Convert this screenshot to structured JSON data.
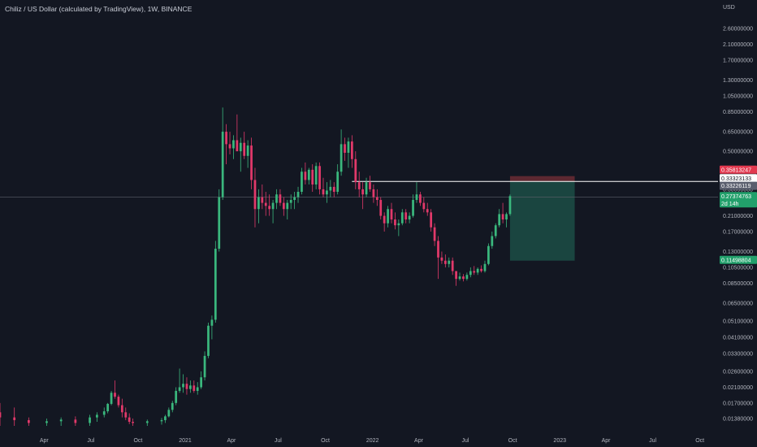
{
  "header": {
    "title": "Chiliz / US Dollar (calculated by TradingView), 1W, BINANCE",
    "unit": "USD"
  },
  "colors": {
    "background": "#131722",
    "up": "#26a69a",
    "down": "#ef5350",
    "up_bright": "#3ab77d",
    "down_bright": "#e2396a",
    "text": "#b2b5be",
    "line_white": "#ffffff",
    "target_zone": "#1c4a44",
    "stop_zone": "#6b2b34"
  },
  "chart_data": {
    "type": "candlestick",
    "symbol": "CHZUSD",
    "interval": "1W",
    "y_scale": "log",
    "ylim": [
      0.0125,
      3.0
    ],
    "y_ticks": [
      "2.60000000",
      "2.10000000",
      "1.70000000",
      "1.30000000",
      "1.05000000",
      "0.85000000",
      "0.65000000",
      "0.50000000",
      "0.40000000",
      "0.30000000",
      "0.21000000",
      "0.17000000",
      "0.13000000",
      "0.10500000",
      "0.08500000",
      "0.06500000",
      "0.05100000",
      "0.04100000",
      "0.03300000",
      "0.02600000",
      "0.02100000",
      "0.01700000",
      "0.01380000"
    ],
    "x_ticks": [
      "Apr",
      "Jul",
      "Oct",
      "2021",
      "Apr",
      "Jul",
      "Oct",
      "2022",
      "Apr",
      "Jul",
      "Oct",
      "2023",
      "Apr",
      "Jul",
      "Oct"
    ],
    "x_range": [
      "2020-01-06",
      "2023-10-30"
    ],
    "price_labels": [
      {
        "text": "0.35813247",
        "kind": "stop"
      },
      {
        "text": "0.33323133",
        "kind": "white"
      },
      {
        "text": "0.33226119",
        "kind": "gray"
      },
      {
        "text": "0.27374763",
        "sub": "2d 14h",
        "kind": "last"
      },
      {
        "text": "0.11498804",
        "kind": "target"
      }
    ],
    "levels": {
      "horizontal_line": 0.3332,
      "horizontal_line_start": "2021-11-22",
      "current_price": 0.2737,
      "crosshair": 0.27
    },
    "position": {
      "start": "2022-09-26",
      "end": "2023-01-30",
      "entry": 0.3322,
      "stop": 0.3581,
      "target": 0.115
    },
    "candles": [
      {
        "t": "2020-01-06",
        "o": 0.015,
        "h": 0.017,
        "l": 0.0125,
        "c": 0.014
      },
      {
        "t": "2020-02-03",
        "o": 0.014,
        "h": 0.016,
        "l": 0.0125,
        "c": 0.0135
      },
      {
        "t": "2020-03-02",
        "o": 0.0135,
        "h": 0.014,
        "l": 0.0125,
        "c": 0.013
      },
      {
        "t": "2020-04-06",
        "o": 0.013,
        "h": 0.0138,
        "l": 0.0125,
        "c": 0.0133
      },
      {
        "t": "2020-05-04",
        "o": 0.0133,
        "h": 0.014,
        "l": 0.0125,
        "c": 0.0136
      },
      {
        "t": "2020-06-01",
        "o": 0.0136,
        "h": 0.0142,
        "l": 0.0125,
        "c": 0.013
      },
      {
        "t": "2020-06-29",
        "o": 0.013,
        "h": 0.0145,
        "l": 0.0125,
        "c": 0.014
      },
      {
        "t": "2020-07-13",
        "o": 0.014,
        "h": 0.015,
        "l": 0.0132,
        "c": 0.0145
      },
      {
        "t": "2020-07-27",
        "o": 0.0145,
        "h": 0.016,
        "l": 0.014,
        "c": 0.0152
      },
      {
        "t": "2020-08-03",
        "o": 0.0152,
        "h": 0.017,
        "l": 0.0148,
        "c": 0.0168
      },
      {
        "t": "2020-08-10",
        "o": 0.0168,
        "h": 0.02,
        "l": 0.0165,
        "c": 0.0195
      },
      {
        "t": "2020-08-17",
        "o": 0.0195,
        "h": 0.023,
        "l": 0.018,
        "c": 0.0185
      },
      {
        "t": "2020-08-24",
        "o": 0.0185,
        "h": 0.019,
        "l": 0.016,
        "c": 0.0165
      },
      {
        "t": "2020-08-31",
        "o": 0.0165,
        "h": 0.018,
        "l": 0.014,
        "c": 0.015
      },
      {
        "t": "2020-09-07",
        "o": 0.015,
        "h": 0.016,
        "l": 0.0135,
        "c": 0.014
      },
      {
        "t": "2020-09-14",
        "o": 0.014,
        "h": 0.0148,
        "l": 0.0128,
        "c": 0.0132
      },
      {
        "t": "2020-09-21",
        "o": 0.0132,
        "h": 0.0138,
        "l": 0.0125,
        "c": 0.013
      },
      {
        "t": "2020-10-19",
        "o": 0.013,
        "h": 0.0136,
        "l": 0.0125,
        "c": 0.0133
      },
      {
        "t": "2020-11-16",
        "o": 0.0133,
        "h": 0.0139,
        "l": 0.0127,
        "c": 0.0135
      },
      {
        "t": "2020-11-23",
        "o": 0.0135,
        "h": 0.0145,
        "l": 0.013,
        "c": 0.0142
      },
      {
        "t": "2020-11-30",
        "o": 0.0142,
        "h": 0.016,
        "l": 0.014,
        "c": 0.0155
      },
      {
        "t": "2020-12-07",
        "o": 0.0155,
        "h": 0.0175,
        "l": 0.015,
        "c": 0.017
      },
      {
        "t": "2020-12-14",
        "o": 0.017,
        "h": 0.021,
        "l": 0.0165,
        "c": 0.02
      },
      {
        "t": "2020-12-21",
        "o": 0.02,
        "h": 0.027,
        "l": 0.0195,
        "c": 0.021
      },
      {
        "t": "2020-12-28",
        "o": 0.021,
        "h": 0.025,
        "l": 0.0195,
        "c": 0.022
      },
      {
        "t": "2021-01-04",
        "o": 0.022,
        "h": 0.024,
        "l": 0.019,
        "c": 0.0205
      },
      {
        "t": "2021-01-11",
        "o": 0.0205,
        "h": 0.023,
        "l": 0.0195,
        "c": 0.0215
      },
      {
        "t": "2021-01-18",
        "o": 0.0215,
        "h": 0.023,
        "l": 0.0195,
        "c": 0.02
      },
      {
        "t": "2021-01-25",
        "o": 0.02,
        "h": 0.0225,
        "l": 0.019,
        "c": 0.021
      },
      {
        "t": "2021-02-01",
        "o": 0.021,
        "h": 0.026,
        "l": 0.0205,
        "c": 0.024
      },
      {
        "t": "2021-02-08",
        "o": 0.024,
        "h": 0.034,
        "l": 0.023,
        "c": 0.032
      },
      {
        "t": "2021-02-15",
        "o": 0.032,
        "h": 0.05,
        "l": 0.031,
        "c": 0.048
      },
      {
        "t": "2021-02-22",
        "o": 0.048,
        "h": 0.055,
        "l": 0.04,
        "c": 0.052
      },
      {
        "t": "2021-03-01",
        "o": 0.052,
        "h": 0.15,
        "l": 0.05,
        "c": 0.135
      },
      {
        "t": "2021-03-08",
        "o": 0.135,
        "h": 0.3,
        "l": 0.13,
        "c": 0.27
      },
      {
        "t": "2021-03-15",
        "o": 0.27,
        "h": 0.9,
        "l": 0.26,
        "c": 0.65
      },
      {
        "t": "2021-03-22",
        "o": 0.65,
        "h": 0.72,
        "l": 0.42,
        "c": 0.55
      },
      {
        "t": "2021-03-29",
        "o": 0.55,
        "h": 0.65,
        "l": 0.48,
        "c": 0.52
      },
      {
        "t": "2021-04-05",
        "o": 0.52,
        "h": 0.62,
        "l": 0.45,
        "c": 0.58
      },
      {
        "t": "2021-04-12",
        "o": 0.58,
        "h": 0.82,
        "l": 0.5,
        "c": 0.5
      },
      {
        "t": "2021-04-19",
        "o": 0.5,
        "h": 0.6,
        "l": 0.38,
        "c": 0.56
      },
      {
        "t": "2021-04-26",
        "o": 0.56,
        "h": 0.65,
        "l": 0.45,
        "c": 0.47
      },
      {
        "t": "2021-05-03",
        "o": 0.47,
        "h": 0.58,
        "l": 0.4,
        "c": 0.54
      },
      {
        "t": "2021-05-10",
        "o": 0.54,
        "h": 0.6,
        "l": 0.3,
        "c": 0.34
      },
      {
        "t": "2021-05-17",
        "o": 0.34,
        "h": 0.4,
        "l": 0.18,
        "c": 0.23
      },
      {
        "t": "2021-05-24",
        "o": 0.23,
        "h": 0.3,
        "l": 0.19,
        "c": 0.27
      },
      {
        "t": "2021-05-31",
        "o": 0.27,
        "h": 0.32,
        "l": 0.23,
        "c": 0.25
      },
      {
        "t": "2021-06-07",
        "o": 0.25,
        "h": 0.29,
        "l": 0.21,
        "c": 0.24
      },
      {
        "t": "2021-06-14",
        "o": 0.24,
        "h": 0.28,
        "l": 0.21,
        "c": 0.23
      },
      {
        "t": "2021-06-21",
        "o": 0.23,
        "h": 0.26,
        "l": 0.19,
        "c": 0.25
      },
      {
        "t": "2021-06-28",
        "o": 0.25,
        "h": 0.3,
        "l": 0.23,
        "c": 0.28
      },
      {
        "t": "2021-07-05",
        "o": 0.28,
        "h": 0.3,
        "l": 0.24,
        "c": 0.25
      },
      {
        "t": "2021-07-12",
        "o": 0.25,
        "h": 0.27,
        "l": 0.21,
        "c": 0.23
      },
      {
        "t": "2021-07-19",
        "o": 0.23,
        "h": 0.26,
        "l": 0.2,
        "c": 0.25
      },
      {
        "t": "2021-07-26",
        "o": 0.25,
        "h": 0.28,
        "l": 0.23,
        "c": 0.26
      },
      {
        "t": "2021-08-02",
        "o": 0.26,
        "h": 0.29,
        "l": 0.23,
        "c": 0.27
      },
      {
        "t": "2021-08-09",
        "o": 0.27,
        "h": 0.31,
        "l": 0.25,
        "c": 0.29
      },
      {
        "t": "2021-08-16",
        "o": 0.29,
        "h": 0.4,
        "l": 0.28,
        "c": 0.38
      },
      {
        "t": "2021-08-23",
        "o": 0.38,
        "h": 0.43,
        "l": 0.32,
        "c": 0.34
      },
      {
        "t": "2021-08-30",
        "o": 0.34,
        "h": 0.4,
        "l": 0.32,
        "c": 0.39
      },
      {
        "t": "2021-09-06",
        "o": 0.39,
        "h": 0.42,
        "l": 0.29,
        "c": 0.32
      },
      {
        "t": "2021-09-13",
        "o": 0.32,
        "h": 0.43,
        "l": 0.3,
        "c": 0.41
      },
      {
        "t": "2021-09-20",
        "o": 0.41,
        "h": 0.43,
        "l": 0.28,
        "c": 0.3
      },
      {
        "t": "2021-09-27",
        "o": 0.3,
        "h": 0.35,
        "l": 0.27,
        "c": 0.28
      },
      {
        "t": "2021-10-04",
        "o": 0.28,
        "h": 0.33,
        "l": 0.25,
        "c": 0.295
      },
      {
        "t": "2021-10-11",
        "o": 0.295,
        "h": 0.34,
        "l": 0.27,
        "c": 0.31
      },
      {
        "t": "2021-10-18",
        "o": 0.31,
        "h": 0.33,
        "l": 0.27,
        "c": 0.29
      },
      {
        "t": "2021-10-25",
        "o": 0.29,
        "h": 0.42,
        "l": 0.28,
        "c": 0.38
      },
      {
        "t": "2021-11-01",
        "o": 0.38,
        "h": 0.67,
        "l": 0.36,
        "c": 0.55
      },
      {
        "t": "2021-11-08",
        "o": 0.55,
        "h": 0.6,
        "l": 0.44,
        "c": 0.49
      },
      {
        "t": "2021-11-15",
        "o": 0.49,
        "h": 0.6,
        "l": 0.4,
        "c": 0.57
      },
      {
        "t": "2021-11-22",
        "o": 0.57,
        "h": 0.62,
        "l": 0.4,
        "c": 0.45
      },
      {
        "t": "2021-11-29",
        "o": 0.45,
        "h": 0.5,
        "l": 0.3,
        "c": 0.33
      },
      {
        "t": "2021-12-06",
        "o": 0.33,
        "h": 0.38,
        "l": 0.27,
        "c": 0.3
      },
      {
        "t": "2021-12-13",
        "o": 0.3,
        "h": 0.33,
        "l": 0.23,
        "c": 0.28
      },
      {
        "t": "2021-12-20",
        "o": 0.28,
        "h": 0.35,
        "l": 0.27,
        "c": 0.33
      },
      {
        "t": "2021-12-27",
        "o": 0.33,
        "h": 0.36,
        "l": 0.29,
        "c": 0.3
      },
      {
        "t": "2022-01-03",
        "o": 0.3,
        "h": 0.32,
        "l": 0.25,
        "c": 0.27
      },
      {
        "t": "2022-01-10",
        "o": 0.27,
        "h": 0.3,
        "l": 0.24,
        "c": 0.26
      },
      {
        "t": "2022-01-17",
        "o": 0.26,
        "h": 0.27,
        "l": 0.2,
        "c": 0.21
      },
      {
        "t": "2022-01-24",
        "o": 0.21,
        "h": 0.22,
        "l": 0.17,
        "c": 0.19
      },
      {
        "t": "2022-01-31",
        "o": 0.19,
        "h": 0.24,
        "l": 0.18,
        "c": 0.23
      },
      {
        "t": "2022-02-07",
        "o": 0.23,
        "h": 0.25,
        "l": 0.19,
        "c": 0.2
      },
      {
        "t": "2022-02-14",
        "o": 0.2,
        "h": 0.22,
        "l": 0.175,
        "c": 0.185
      },
      {
        "t": "2022-02-21",
        "o": 0.185,
        "h": 0.2,
        "l": 0.16,
        "c": 0.19
      },
      {
        "t": "2022-02-28",
        "o": 0.19,
        "h": 0.23,
        "l": 0.185,
        "c": 0.22
      },
      {
        "t": "2022-03-07",
        "o": 0.22,
        "h": 0.23,
        "l": 0.19,
        "c": 0.2
      },
      {
        "t": "2022-03-14",
        "o": 0.2,
        "h": 0.22,
        "l": 0.19,
        "c": 0.21
      },
      {
        "t": "2022-03-21",
        "o": 0.21,
        "h": 0.28,
        "l": 0.205,
        "c": 0.26
      },
      {
        "t": "2022-03-28",
        "o": 0.26,
        "h": 0.33,
        "l": 0.25,
        "c": 0.28
      },
      {
        "t": "2022-04-04",
        "o": 0.28,
        "h": 0.29,
        "l": 0.24,
        "c": 0.25
      },
      {
        "t": "2022-04-11",
        "o": 0.25,
        "h": 0.27,
        "l": 0.22,
        "c": 0.23
      },
      {
        "t": "2022-04-18",
        "o": 0.23,
        "h": 0.25,
        "l": 0.21,
        "c": 0.22
      },
      {
        "t": "2022-04-25",
        "o": 0.22,
        "h": 0.23,
        "l": 0.17,
        "c": 0.18
      },
      {
        "t": "2022-05-02",
        "o": 0.18,
        "h": 0.19,
        "l": 0.14,
        "c": 0.15
      },
      {
        "t": "2022-05-09",
        "o": 0.15,
        "h": 0.16,
        "l": 0.09,
        "c": 0.12
      },
      {
        "t": "2022-05-16",
        "o": 0.12,
        "h": 0.13,
        "l": 0.11,
        "c": 0.115
      },
      {
        "t": "2022-05-23",
        "o": 0.115,
        "h": 0.125,
        "l": 0.105,
        "c": 0.11
      },
      {
        "t": "2022-05-30",
        "o": 0.11,
        "h": 0.12,
        "l": 0.105,
        "c": 0.115
      },
      {
        "t": "2022-06-06",
        "o": 0.115,
        "h": 0.12,
        "l": 0.095,
        "c": 0.1
      },
      {
        "t": "2022-06-13",
        "o": 0.1,
        "h": 0.1,
        "l": 0.082,
        "c": 0.09
      },
      {
        "t": "2022-06-20",
        "o": 0.09,
        "h": 0.098,
        "l": 0.088,
        "c": 0.093
      },
      {
        "t": "2022-06-27",
        "o": 0.093,
        "h": 0.096,
        "l": 0.087,
        "c": 0.09
      },
      {
        "t": "2022-07-04",
        "o": 0.09,
        "h": 0.098,
        "l": 0.088,
        "c": 0.095
      },
      {
        "t": "2022-07-11",
        "o": 0.095,
        "h": 0.105,
        "l": 0.092,
        "c": 0.1
      },
      {
        "t": "2022-07-18",
        "o": 0.1,
        "h": 0.107,
        "l": 0.095,
        "c": 0.098
      },
      {
        "t": "2022-07-25",
        "o": 0.098,
        "h": 0.105,
        "l": 0.095,
        "c": 0.103
      },
      {
        "t": "2022-08-01",
        "o": 0.103,
        "h": 0.108,
        "l": 0.098,
        "c": 0.1
      },
      {
        "t": "2022-08-08",
        "o": 0.1,
        "h": 0.115,
        "l": 0.098,
        "c": 0.11
      },
      {
        "t": "2022-08-15",
        "o": 0.11,
        "h": 0.145,
        "l": 0.108,
        "c": 0.14
      },
      {
        "t": "2022-08-22",
        "o": 0.14,
        "h": 0.17,
        "l": 0.135,
        "c": 0.16
      },
      {
        "t": "2022-08-29",
        "o": 0.16,
        "h": 0.19,
        "l": 0.155,
        "c": 0.185
      },
      {
        "t": "2022-09-05",
        "o": 0.185,
        "h": 0.23,
        "l": 0.18,
        "c": 0.215
      },
      {
        "t": "2022-09-12",
        "o": 0.215,
        "h": 0.25,
        "l": 0.19,
        "c": 0.2
      },
      {
        "t": "2022-09-19",
        "o": 0.2,
        "h": 0.22,
        "l": 0.18,
        "c": 0.215
      },
      {
        "t": "2022-09-26",
        "o": 0.215,
        "h": 0.28,
        "l": 0.21,
        "c": 0.2737
      }
    ]
  }
}
